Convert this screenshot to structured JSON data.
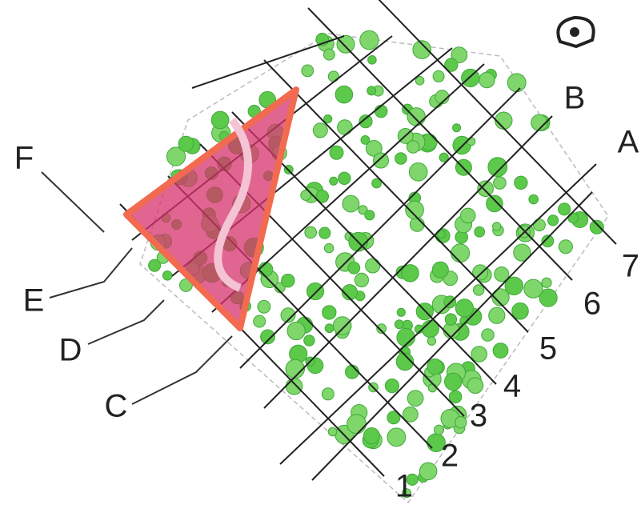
{
  "labels": {
    "F": "F",
    "E": "E",
    "D": "D",
    "C": "C",
    "B": "B",
    "A": "A"
  },
  "numbers": [
    "1",
    "2",
    "3",
    "4",
    "5",
    "6",
    "7"
  ]
}
